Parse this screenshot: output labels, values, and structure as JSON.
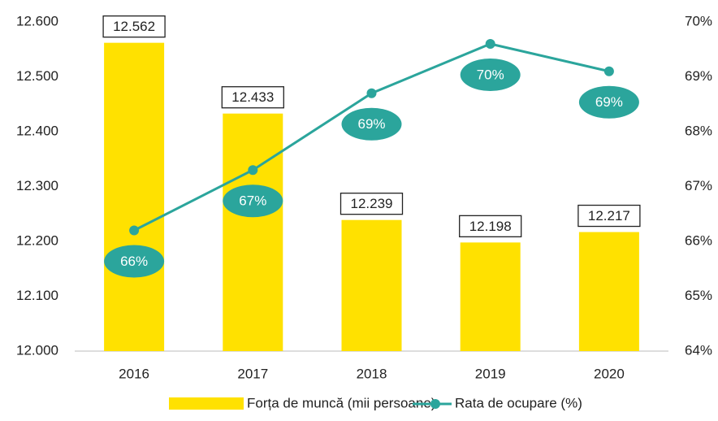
{
  "chart_data": {
    "type": "bar_line",
    "categories": [
      "2016",
      "2017",
      "2018",
      "2019",
      "2020"
    ],
    "series": [
      {
        "name": "Forța de muncă (mii persoane)",
        "type": "bar",
        "color": "#ffe100",
        "values": [
          12562,
          12433,
          12239,
          12198,
          12217
        ],
        "value_labels": [
          "12.562",
          "12.433",
          "12.239",
          "12.198",
          "12.217"
        ]
      },
      {
        "name": "Rata de ocupare (%)",
        "type": "line",
        "axis": "y2",
        "color": "#2ba59c",
        "values": [
          66.2,
          67.3,
          68.7,
          69.6,
          69.1
        ],
        "value_labels": [
          "66%",
          "67%",
          "69%",
          "70%",
          "69%"
        ]
      }
    ],
    "ylim": [
      12000,
      12600
    ],
    "yticks": [
      {
        "value": 12000,
        "label": "12.000"
      },
      {
        "value": 12100,
        "label": "12.100"
      },
      {
        "value": 12200,
        "label": "12.200"
      },
      {
        "value": 12300,
        "label": "12.300"
      },
      {
        "value": 12400,
        "label": "12.400"
      },
      {
        "value": 12500,
        "label": "12.500"
      },
      {
        "value": 12600,
        "label": "12.600"
      }
    ],
    "y2lim": [
      64,
      70
    ],
    "y2ticks": [
      {
        "value": 64,
        "label": "64%"
      },
      {
        "value": 65,
        "label": "65%"
      },
      {
        "value": 66,
        "label": "66%"
      },
      {
        "value": 67,
        "label": "67%"
      },
      {
        "value": 68,
        "label": "68%"
      },
      {
        "value": 69,
        "label": "69%"
      },
      {
        "value": 70,
        "label": "70%"
      }
    ],
    "grid": false,
    "legend": "bottom"
  }
}
